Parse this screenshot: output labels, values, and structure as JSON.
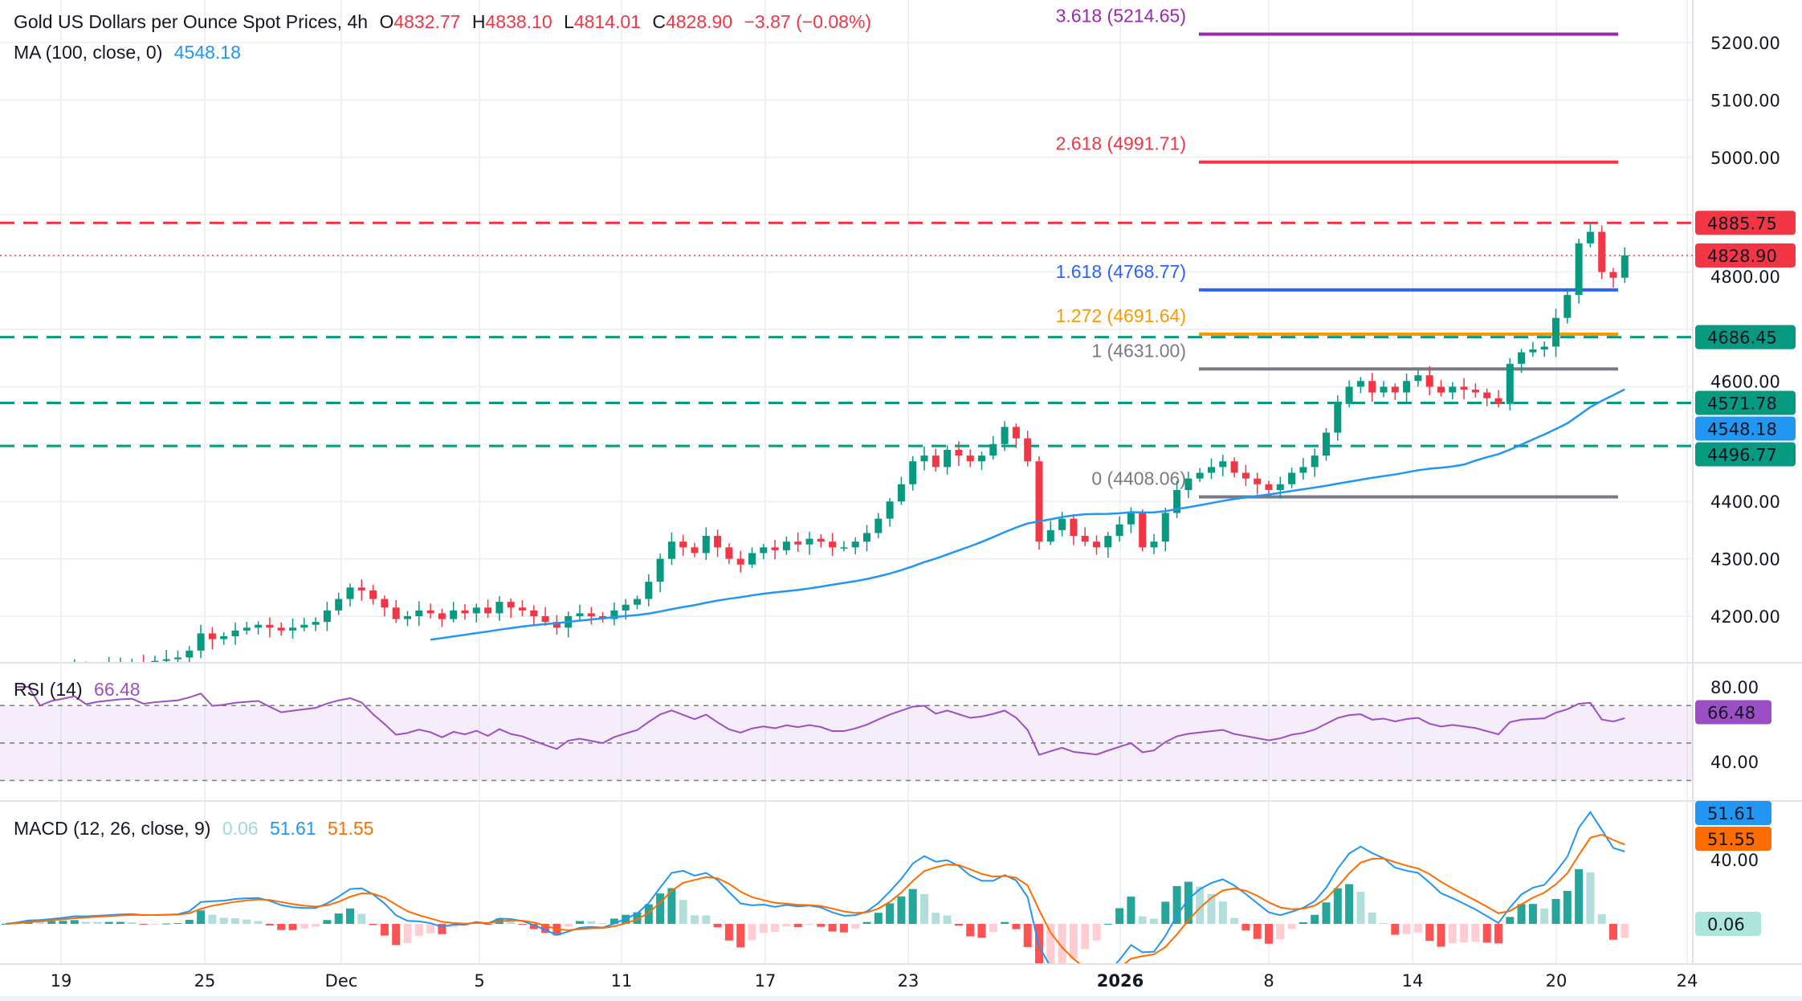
{
  "header": {
    "title": "Gold US Dollars per Ounce Spot Prices, 4h",
    "open_label": "O",
    "open": "4832.77",
    "high_label": "H",
    "high": "4838.10",
    "low_label": "L",
    "low": "4814.01",
    "close_label": "C",
    "close": "4828.90",
    "change": "−3.87 (−0.08%)"
  },
  "ma_legend": {
    "label": "MA (100, close, 0)",
    "value": "4548.18"
  },
  "rsi_legend": {
    "label": "RSI (14)",
    "value": "66.48"
  },
  "macd_legend": {
    "label": "MACD (12, 26, close, 9)",
    "hist": "0.06",
    "macd": "51.61",
    "signal": "51.55"
  },
  "colors": {
    "up": "#089981",
    "down": "#f23645",
    "ma": "#2196f3",
    "rsi": "#9c4fc4",
    "macd": "#2196f3",
    "signal": "#ff6d00"
  },
  "chart_data": {
    "type": "candlestick",
    "price_axis": {
      "ticks": [
        "5200.00",
        "5100.00",
        "5000.00",
        "4800.00",
        "4600.00",
        "4400.00",
        "4300.00",
        "4200.00"
      ],
      "tick_values": [
        5200,
        5100,
        5000,
        4900,
        4800,
        4700,
        4600,
        4500,
        4400,
        4300,
        4200
      ],
      "ylim": [
        4160,
        5280
      ]
    },
    "time_axis": {
      "ticks": [
        {
          "label": "19",
          "bold": false
        },
        {
          "label": "25",
          "bold": false
        },
        {
          "label": "Dec",
          "bold": false
        },
        {
          "label": "5",
          "bold": false
        },
        {
          "label": "11",
          "bold": false
        },
        {
          "label": "17",
          "bold": false
        },
        {
          "label": "23",
          "bold": false
        },
        {
          "label": "2026",
          "bold": true
        },
        {
          "label": "8",
          "bold": false
        },
        {
          "label": "14",
          "bold": false
        },
        {
          "label": "20",
          "bold": false
        },
        {
          "label": "24",
          "bold": false
        }
      ]
    },
    "closes": [
      4090,
      4095,
      4100,
      4098,
      4102,
      4105,
      4110,
      4108,
      4112,
      4115,
      4118,
      4120,
      4118,
      4122,
      4125,
      4128,
      4140,
      4170,
      4160,
      4165,
      4175,
      4180,
      4185,
      4180,
      4175,
      4180,
      4185,
      4190,
      4210,
      4230,
      4250,
      4245,
      4230,
      4215,
      4195,
      4200,
      4210,
      4205,
      4195,
      4210,
      4205,
      4215,
      4205,
      4225,
      4215,
      4210,
      4200,
      4190,
      4180,
      4200,
      4205,
      4200,
      4195,
      4210,
      4220,
      4230,
      4260,
      4300,
      4330,
      4320,
      4310,
      4340,
      4320,
      4300,
      4290,
      4310,
      4320,
      4315,
      4330,
      4325,
      4335,
      4330,
      4320,
      4320,
      4330,
      4345,
      4370,
      4400,
      4430,
      4470,
      4480,
      4460,
      4490,
      4480,
      4470,
      4480,
      4500,
      4530,
      4510,
      4470,
      4330,
      4350,
      4370,
      4340,
      4330,
      4320,
      4340,
      4360,
      4380,
      4320,
      4330,
      4380,
      4420,
      4440,
      4450,
      4460,
      4470,
      4450,
      4440,
      4430,
      4420,
      4430,
      4450,
      4460,
      4480,
      4520,
      4570,
      4600,
      4610,
      4590,
      4600,
      4590,
      4610,
      4620,
      4600,
      4590,
      4600,
      4595,
      4590,
      4580,
      4570,
      4640,
      4660,
      4665,
      4670,
      4720,
      4760,
      4850,
      4870,
      4800,
      4790,
      4829
    ],
    "ma_period": 100,
    "levels": [
      {
        "value": 4885.75,
        "label": "4885.75",
        "color": "#f23645",
        "style": "dashed"
      },
      {
        "value": 4686.45,
        "label": "4686.45",
        "color": "#089981",
        "style": "dashed"
      },
      {
        "value": 4571.78,
        "label": "4571.78",
        "color": "#089981",
        "style": "dashed"
      },
      {
        "value": 4496.77,
        "label": "4496.77",
        "color": "#089981",
        "style": "dashed"
      }
    ],
    "current_price": {
      "value": 4828.9,
      "label": "4828.90",
      "color": "#f23645"
    },
    "ma_badge": {
      "value": 4548.18,
      "label": "4548.18",
      "color": "#2196f3"
    },
    "fib_levels": [
      {
        "ratio_label": "3.618 (5214.65)",
        "value": 5214.65,
        "color": "#9c27b0"
      },
      {
        "ratio_label": "2.618 (4991.71)",
        "value": 4991.71,
        "color": "#f23645"
      },
      {
        "ratio_label": "1.618 (4768.77)",
        "value": 4768.77,
        "color": "#2962ff"
      },
      {
        "ratio_label": "1.272 (4691.64)",
        "value": 4691.64,
        "color": "#ff9800"
      },
      {
        "ratio_label": "1 (4631.00)",
        "value": 4631.0,
        "color": "#787b86"
      },
      {
        "ratio_label": "0 (4408.06)",
        "value": 4408.06,
        "color": "#787b86"
      }
    ],
    "rsi": {
      "ticks": [
        "80.00",
        "40.00"
      ],
      "upper": 70,
      "middle": 50,
      "lower": 30,
      "value_label": "66.48",
      "value": 66.48
    },
    "macd": {
      "ticks": [
        "40.00"
      ],
      "macd_label": "51.61",
      "signal_label": "51.55",
      "hist_label": "0.06",
      "macd": 51.61,
      "signal": 51.55,
      "hist": 0.06
    }
  }
}
